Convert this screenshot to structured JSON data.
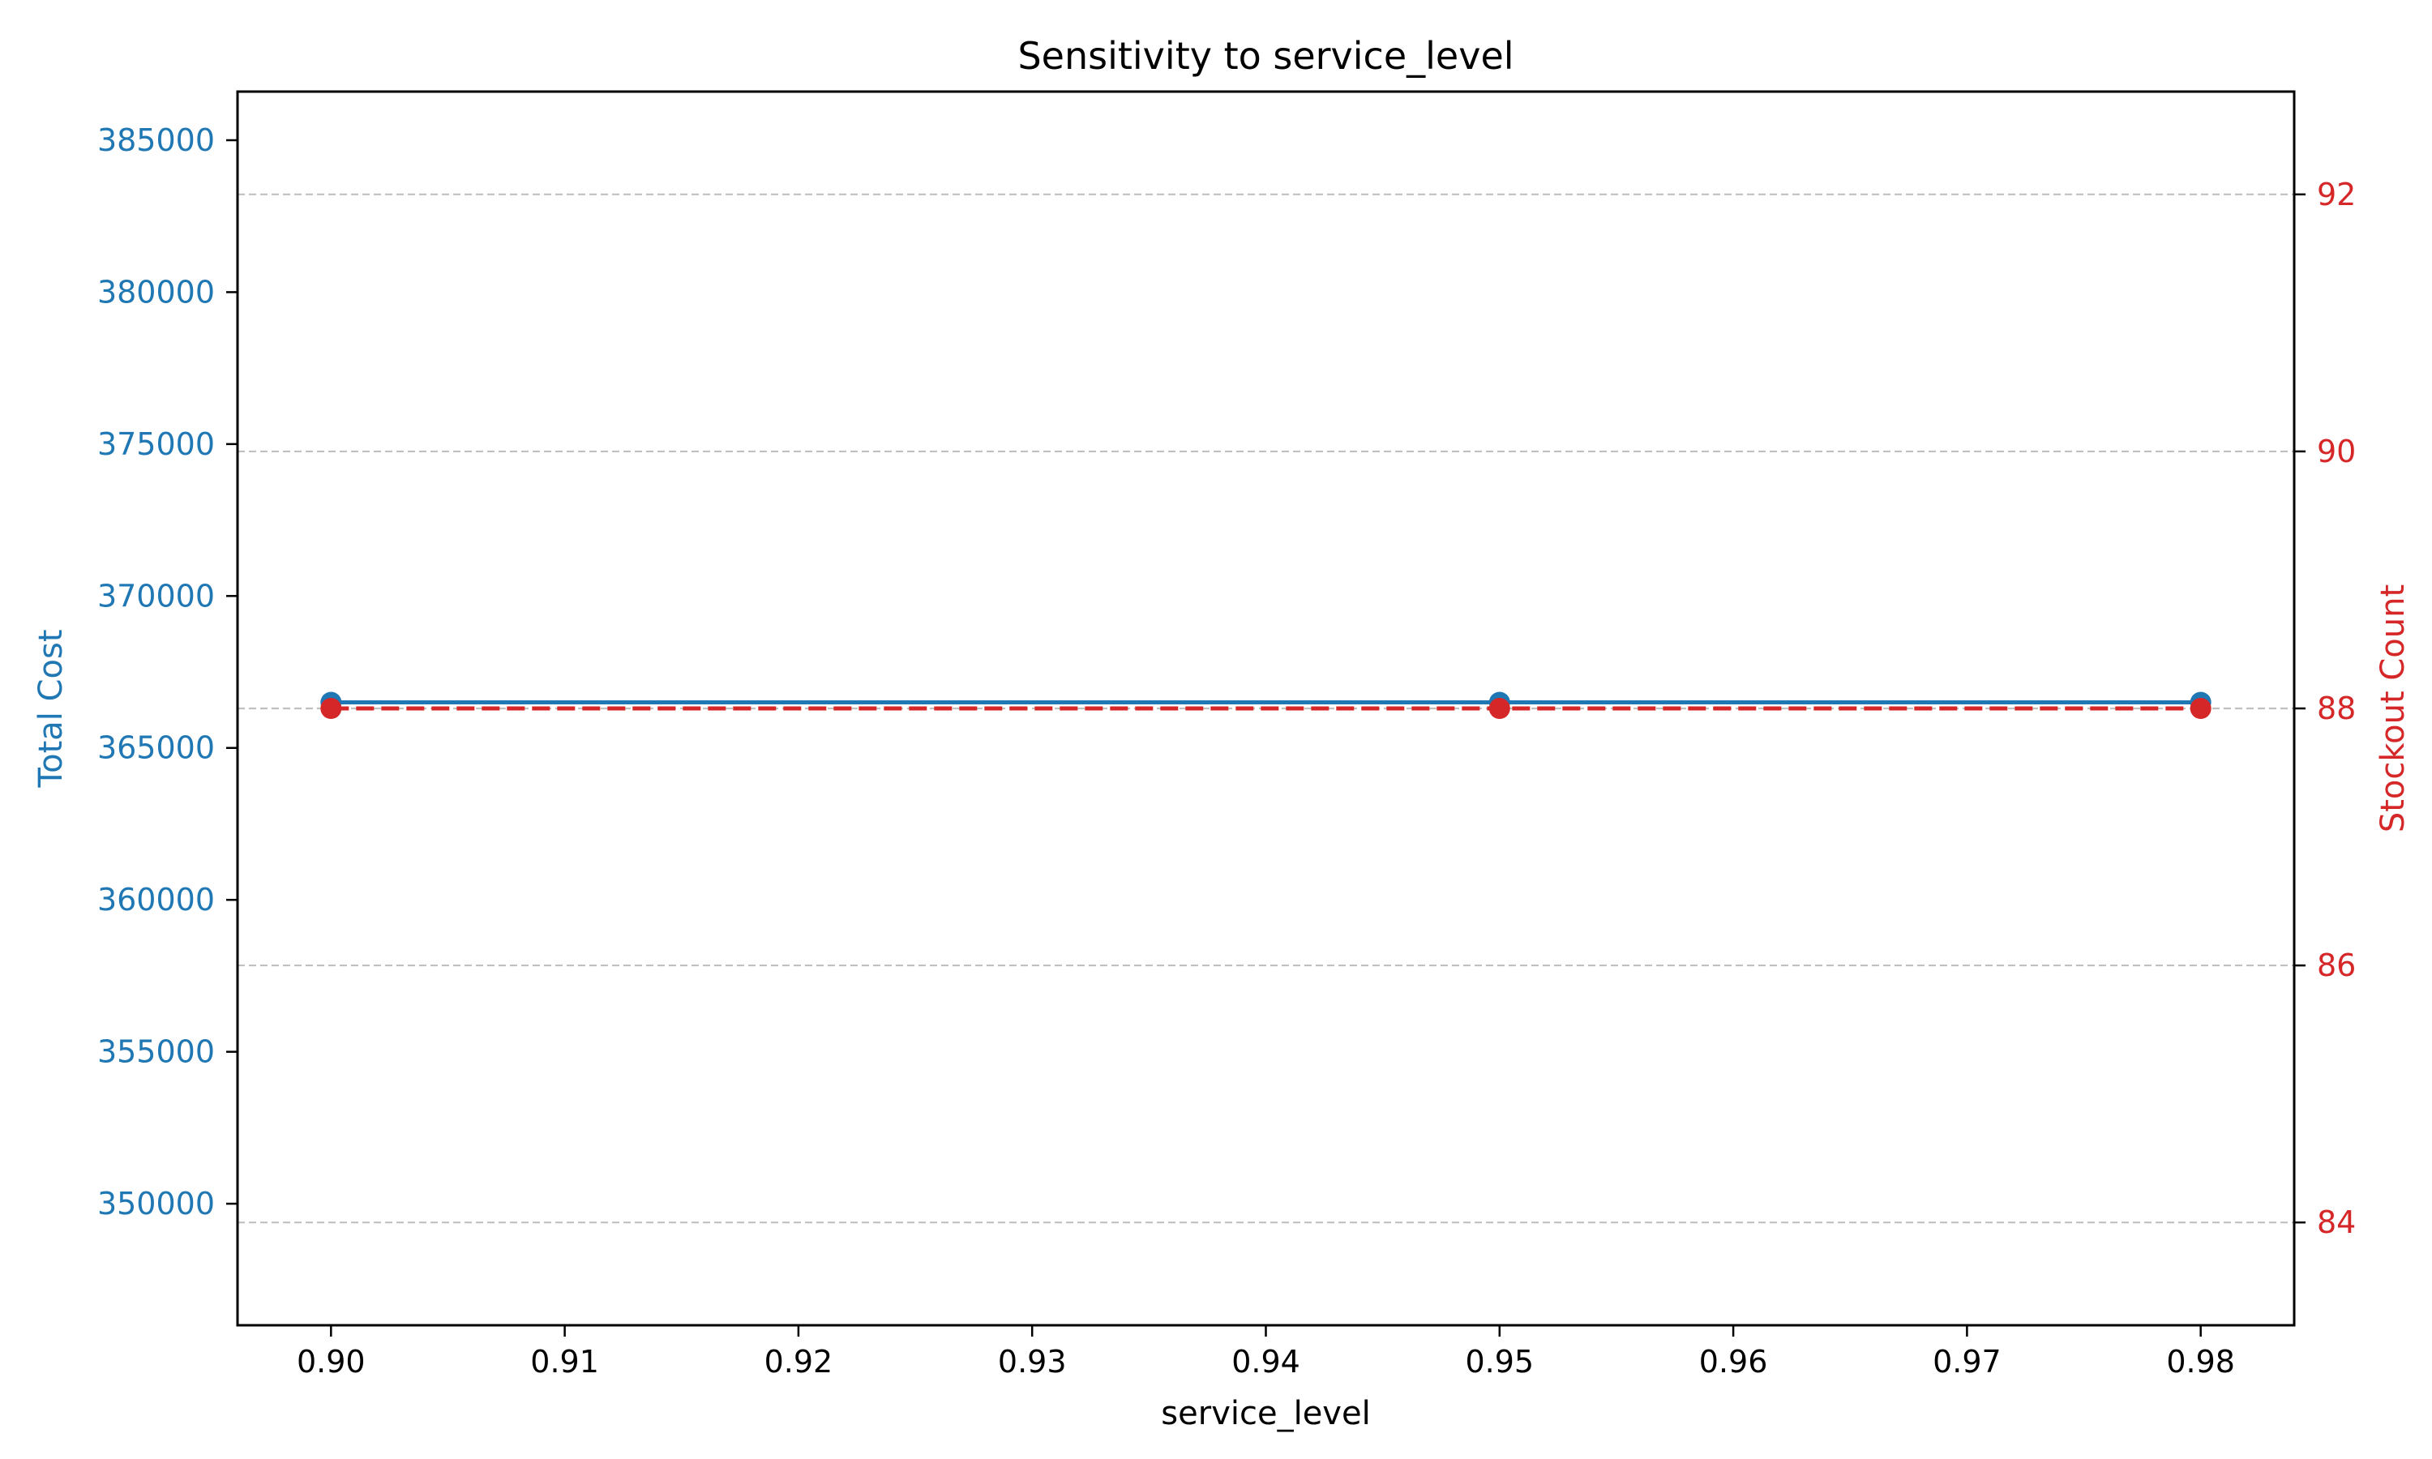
{
  "chart_data": {
    "type": "line",
    "title": "Sensitivity to service_level",
    "xlabel": "service_level",
    "ylabel_left": "Total Cost",
    "ylabel_right": "Stockout Count",
    "x": [
      0.9,
      0.95,
      0.98
    ],
    "x_ticks": [
      "0.90",
      "0.91",
      "0.92",
      "0.93",
      "0.94",
      "0.95",
      "0.96",
      "0.97",
      "0.98"
    ],
    "xlim": [
      0.896,
      0.984
    ],
    "ylim_left": [
      346000,
      386600
    ],
    "yticks_left": [
      "350000",
      "355000",
      "360000",
      "365000",
      "370000",
      "375000",
      "380000",
      "385000"
    ],
    "ylim_right": [
      83.2,
      92.8
    ],
    "yticks_right": [
      "84",
      "86",
      "88",
      "90",
      "92"
    ],
    "grid": "dashed horizontal (right axis ticks)",
    "series": [
      {
        "axis": "left",
        "values": [
          366500,
          366500,
          366500
        ],
        "color": "#1f77b4",
        "style": "solid line with circle markers"
      },
      {
        "axis": "right",
        "values": [
          88,
          88,
          88
        ],
        "color": "#d62728",
        "style": "dashed line with circle markers"
      }
    ],
    "colors": {
      "left_axis": "#1f77b4",
      "right_axis": "#d62728",
      "grid": "#c0c0c0"
    }
  }
}
